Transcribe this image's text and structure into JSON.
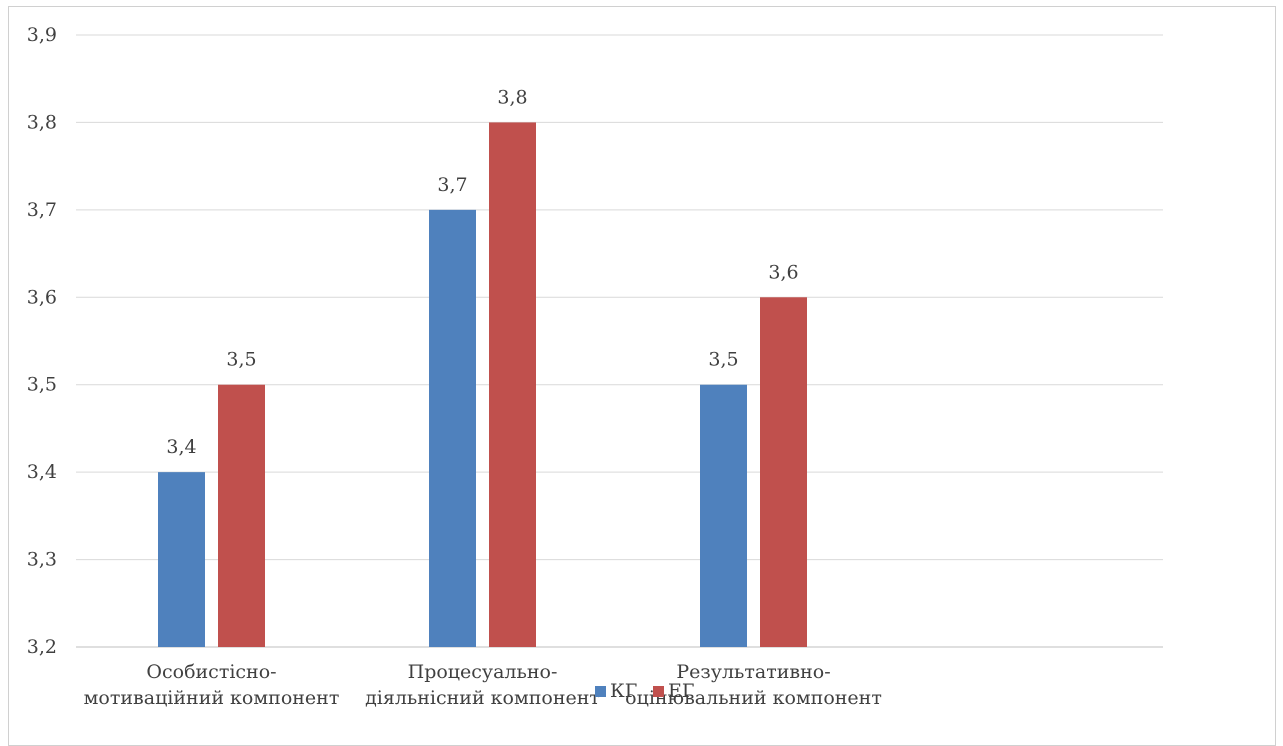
{
  "chart_data": {
    "type": "bar",
    "title": "",
    "xlabel": "",
    "ylabel": "",
    "categories": [
      [
        "Особистісно-",
        "мотиваційний компонент"
      ],
      [
        "Процесуально-",
        "діяльнісний компонент"
      ],
      [
        "Результативно-",
        "оцінювальний компонент"
      ]
    ],
    "series": [
      {
        "name": "КГ",
        "values": [
          3.4,
          3.7,
          3.5
        ],
        "color": "#4f81bd"
      },
      {
        "name": "ЕГ",
        "values": [
          3.5,
          3.8,
          3.6
        ],
        "color": "#c0504d"
      }
    ],
    "value_labels": [
      [
        "3,4",
        "3,7",
        "3,5"
      ],
      [
        "3,5",
        "3,8",
        "3,6"
      ]
    ],
    "y_ticks": [
      "3,2",
      "3,3",
      "3,4",
      "3,5",
      "3,6",
      "3,7",
      "3,8",
      "3,9"
    ],
    "ylim": [
      3.2,
      3.9
    ],
    "grid": true,
    "legend_position": "bottom"
  }
}
